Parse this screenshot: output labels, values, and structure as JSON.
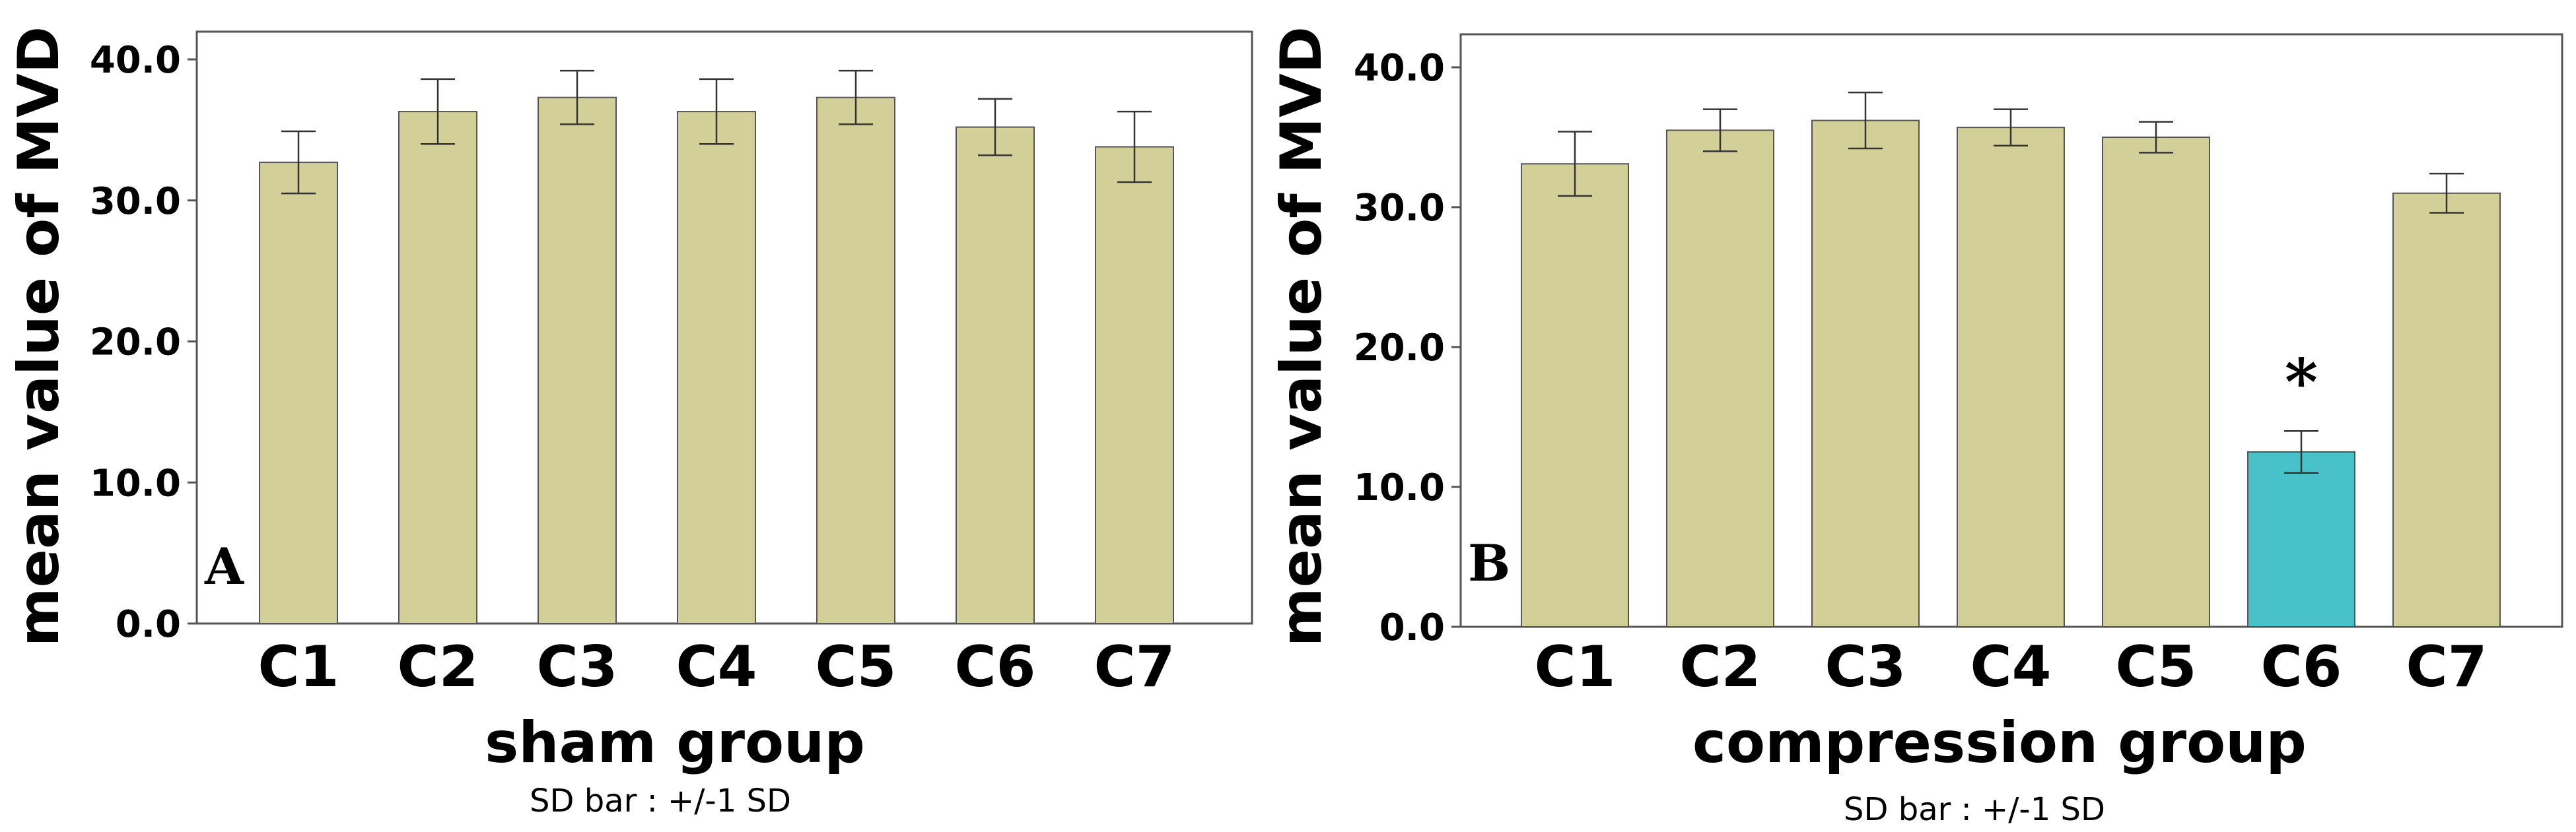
{
  "chart_data": [
    {
      "type": "bar",
      "panel_label": "A",
      "categories": [
        "C1",
        "C2",
        "C3",
        "C4",
        "C5",
        "C6",
        "C7"
      ],
      "values": [
        32.7,
        36.3,
        37.3,
        36.3,
        37.3,
        35.2,
        33.8
      ],
      "error": [
        2.2,
        2.3,
        1.9,
        2.3,
        1.9,
        2.0,
        2.5
      ],
      "colors": [
        "#d2cf98",
        "#d2cf98",
        "#d2cf98",
        "#d2cf98",
        "#d2cf98",
        "#d2cf98",
        "#d2cf98"
      ],
      "xlabel": "sham  group",
      "ylabel": "mean value of MVD",
      "ylim": [
        0,
        40
      ],
      "yticks": [
        "0.0",
        "10.0",
        "20.0",
        "30.0",
        "40.0"
      ],
      "note": "SD bar : +/-1 SD",
      "annotations": []
    },
    {
      "type": "bar",
      "panel_label": "B",
      "categories": [
        "C1",
        "C2",
        "C3",
        "C4",
        "C5",
        "C6",
        "C7"
      ],
      "values": [
        33.1,
        35.5,
        36.2,
        35.7,
        35.0,
        12.5,
        31.0
      ],
      "error": [
        2.3,
        1.5,
        2.0,
        1.3,
        1.1,
        1.5,
        1.4
      ],
      "colors": [
        "#d2cf98",
        "#d2cf98",
        "#d2cf98",
        "#d2cf98",
        "#d2cf98",
        "#48c1c9",
        "#d2cf98"
      ],
      "xlabel": "compression group",
      "ylabel": "mean value of MVD",
      "ylim": [
        0,
        40
      ],
      "yticks": [
        "0.0",
        "10.0",
        "20.0",
        "30.0",
        "40.0"
      ],
      "note": "SD bar : +/-1 SD",
      "annotations": [
        {
          "category": "C6",
          "text": "*"
        }
      ]
    }
  ]
}
